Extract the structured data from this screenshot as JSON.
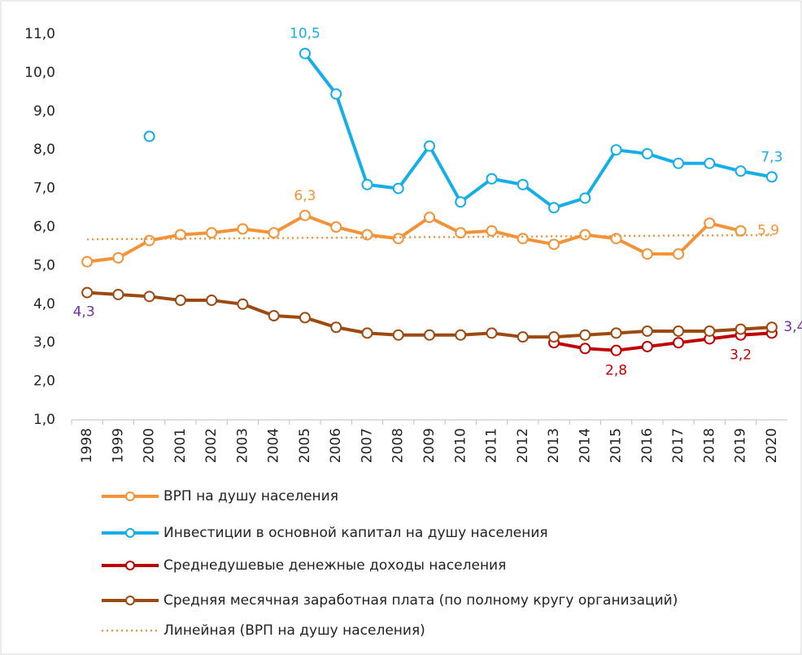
{
  "chart_data": {
    "type": "line",
    "categories": [
      "1998",
      "1999",
      "2000",
      "2001",
      "2002",
      "2003",
      "2004",
      "2005",
      "2006",
      "2007",
      "2008",
      "2009",
      "2010",
      "2011",
      "2012",
      "2013",
      "2014",
      "2015",
      "2016",
      "2017",
      "2018",
      "2019",
      "2020"
    ],
    "ylim": [
      1,
      11
    ],
    "yticks": [
      {
        "value": 1,
        "label": "1,0"
      },
      {
        "value": 2,
        "label": "2,0"
      },
      {
        "value": 3,
        "label": "3,0"
      },
      {
        "value": 4,
        "label": "4,0"
      },
      {
        "value": 5,
        "label": "5,0"
      },
      {
        "value": 6,
        "label": "6,0"
      },
      {
        "value": 7,
        "label": "7,0"
      },
      {
        "value": 8,
        "label": "8,0"
      },
      {
        "value": 9,
        "label": "9,0"
      },
      {
        "value": 10,
        "label": "10,0"
      },
      {
        "value": 11,
        "label": "11,0"
      }
    ],
    "grid": false,
    "series": [
      {
        "name": "ВРП на душу населения",
        "color": "#f39237",
        "label_color": "#f39237",
        "line_style": "solid",
        "markers": true,
        "values": [
          5.1,
          5.2,
          5.65,
          5.8,
          5.85,
          5.95,
          5.85,
          6.3,
          6.0,
          5.8,
          5.7,
          6.25,
          5.85,
          5.9,
          5.7,
          5.55,
          5.8,
          5.7,
          5.3,
          5.3,
          6.1,
          5.9,
          null
        ],
        "value_labels": [
          null,
          null,
          null,
          null,
          null,
          null,
          null,
          "6,3",
          null,
          null,
          null,
          null,
          null,
          null,
          null,
          null,
          null,
          null,
          null,
          null,
          null,
          "5,9",
          null
        ]
      },
      {
        "name": "Инвестиции в основной капитал на душу населения",
        "color": "#16aee8",
        "label_color": "#16aee8",
        "line_style": "solid",
        "markers": true,
        "values": [
          null,
          null,
          8.35,
          null,
          null,
          null,
          null,
          10.5,
          9.45,
          7.1,
          7.0,
          8.1,
          6.65,
          7.25,
          7.1,
          6.5,
          6.75,
          8.0,
          7.9,
          7.65,
          7.65,
          7.45,
          7.3
        ],
        "value_labels": [
          null,
          null,
          null,
          null,
          null,
          null,
          null,
          "10,5",
          null,
          null,
          null,
          null,
          null,
          null,
          null,
          null,
          null,
          null,
          null,
          null,
          null,
          null,
          "7,3"
        ]
      },
      {
        "name": "Среднедушевые денежные доходы населения",
        "color": "#c00000",
        "label_color": "#c00000",
        "line_style": "solid",
        "markers": true,
        "values": [
          null,
          null,
          null,
          null,
          null,
          null,
          null,
          null,
          null,
          null,
          null,
          null,
          null,
          null,
          null,
          3.0,
          2.85,
          2.8,
          2.9,
          3.0,
          3.1,
          3.2,
          3.25
        ],
        "value_labels": [
          null,
          null,
          null,
          null,
          null,
          null,
          null,
          null,
          null,
          null,
          null,
          null,
          null,
          null,
          null,
          null,
          null,
          "2,8",
          null,
          null,
          null,
          "3,2",
          null
        ]
      },
      {
        "name": "Средняя месячная заработная плата (по полному кругу организаций)",
        "color": "#9c4a10",
        "label_color": "#7030a0",
        "line_style": "solid",
        "markers": true,
        "values": [
          4.3,
          4.25,
          4.2,
          4.1,
          4.1,
          4.0,
          3.7,
          3.65,
          3.4,
          3.25,
          3.2,
          3.2,
          3.2,
          3.25,
          3.15,
          3.15,
          3.2,
          3.25,
          3.3,
          3.3,
          3.3,
          3.35,
          3.4
        ],
        "value_labels": [
          "4,3",
          null,
          null,
          null,
          null,
          null,
          null,
          null,
          null,
          null,
          null,
          null,
          null,
          null,
          null,
          null,
          null,
          null,
          null,
          null,
          null,
          null,
          "3,4"
        ]
      },
      {
        "name": "Линейная (ВРП на душу населения)",
        "color": "#f39237",
        "line_style": "dotted",
        "markers": false,
        "values": [
          5.68,
          5.69,
          5.69,
          5.7,
          5.7,
          5.71,
          5.71,
          5.72,
          5.72,
          5.73,
          5.73,
          5.74,
          5.74,
          5.75,
          5.75,
          5.76,
          5.76,
          5.77,
          5.77,
          5.78,
          5.78,
          5.79,
          5.79
        ]
      }
    ]
  }
}
